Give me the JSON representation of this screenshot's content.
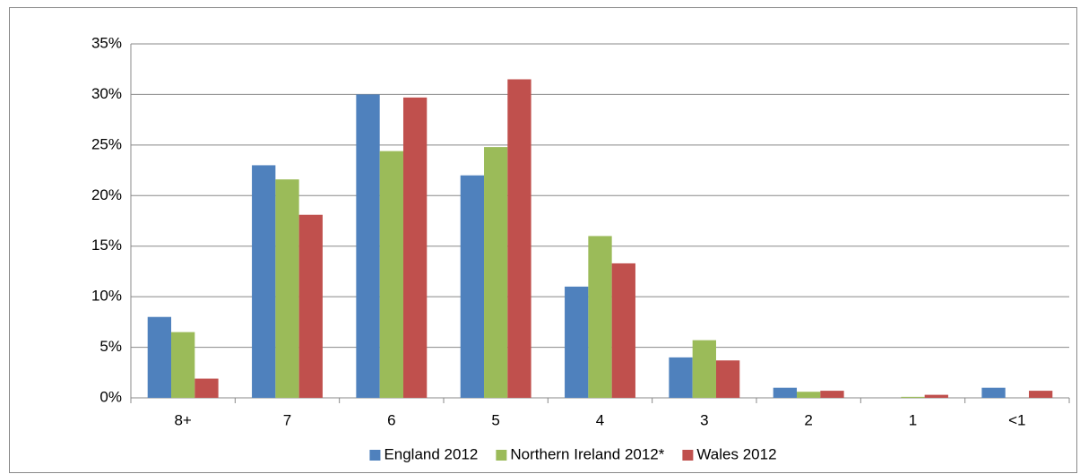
{
  "chart_data": {
    "type": "bar",
    "categories": [
      "8+",
      "7",
      "6",
      "5",
      "4",
      "3",
      "2",
      "1",
      "<1"
    ],
    "series": [
      {
        "name": "England 2012",
        "color": "#4f81bd",
        "values": [
          8,
          23,
          30,
          22,
          11,
          4,
          1,
          0,
          1
        ]
      },
      {
        "name": "Northern Ireland 2012*",
        "color": "#9bbb59",
        "values": [
          6.5,
          21.6,
          24.4,
          24.8,
          16,
          5.7,
          0.6,
          0.1,
          0
        ]
      },
      {
        "name": "Wales 2012",
        "color": "#c0504d",
        "values": [
          1.9,
          18.1,
          29.7,
          31.5,
          13.3,
          3.7,
          0.7,
          0.3,
          0.7
        ]
      }
    ],
    "ylim": [
      0,
      35
    ],
    "yticks": [
      {
        "value": 0,
        "label": "0%"
      },
      {
        "value": 5,
        "label": "5%"
      },
      {
        "value": 10,
        "label": "10%"
      },
      {
        "value": 15,
        "label": "15%"
      },
      {
        "value": 20,
        "label": "20%"
      },
      {
        "value": 25,
        "label": "25%"
      },
      {
        "value": 30,
        "label": "30%"
      },
      {
        "value": 35,
        "label": "35%"
      }
    ],
    "grid": true,
    "legend": "bottom"
  }
}
